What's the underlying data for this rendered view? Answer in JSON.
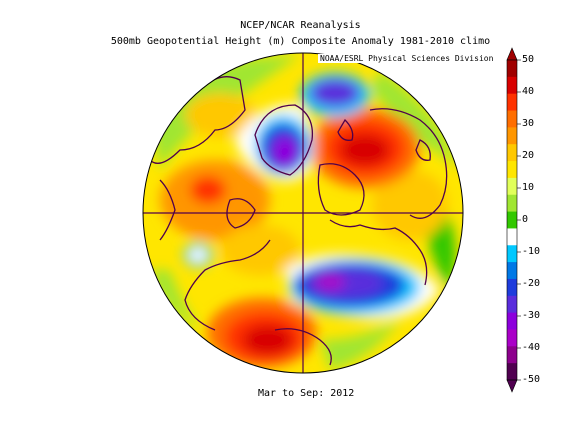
{
  "figure": {
    "title_line1": "NCEP/NCAR Reanalysis",
    "title_line2": "500mb Geopotential Height (m) Composite Anomaly 1981-2010 climo",
    "credit": "NOAA/ESRL Physical Sciences Division",
    "period": "Mar to Sep: 2012"
  },
  "map": {
    "projection": "north polar stereographic",
    "variable": "500mb geopotential height anomaly",
    "units": "m",
    "anomaly_centers": [
      {
        "sign": "positive",
        "value": 45
      },
      {
        "sign": "positive",
        "value": 45
      },
      {
        "sign": "positive",
        "value": 25
      },
      {
        "sign": "negative",
        "value": -40
      },
      {
        "sign": "negative",
        "value": -35
      },
      {
        "sign": "negative",
        "value": -25
      },
      {
        "sign": "negative",
        "value": -10
      }
    ]
  },
  "colorbar": {
    "labels": [
      "50",
      "40",
      "30",
      "20",
      "10",
      "0",
      "-10",
      "-20",
      "-30",
      "-40",
      "-50"
    ],
    "colors": [
      "#a00000",
      "#d80000",
      "#ff3200",
      "#ff6e00",
      "#ff9600",
      "#ffc800",
      "#ffe600",
      "#e1ff5a",
      "#a0e632",
      "#32c800",
      "#ffffff",
      "#00c8ff",
      "#0078e6",
      "#1e3cdc",
      "#5a2ddc",
      "#8c00dc",
      "#aa00c8",
      "#8c008c",
      "#500050"
    ],
    "min": -50,
    "max": 50
  }
}
